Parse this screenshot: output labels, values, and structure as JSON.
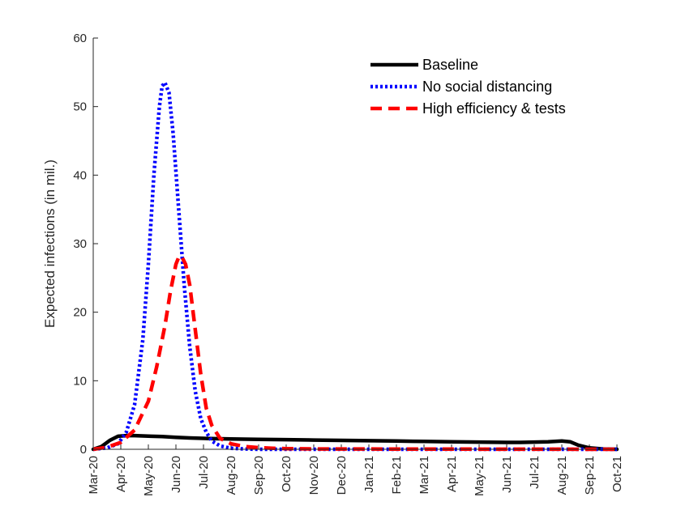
{
  "chart_data": {
    "type": "line",
    "title": "",
    "xlabel": "",
    "ylabel": "Expected infections (in mil.)",
    "ylim": [
      0,
      60
    ],
    "yticks": [
      0,
      10,
      20,
      30,
      40,
      50,
      60
    ],
    "xlim": [
      0,
      19
    ],
    "categories": [
      "Mar-20",
      "Apr-20",
      "May-20",
      "Jun-20",
      "Jul-20",
      "Aug-20",
      "Sep-20",
      "Oct-20",
      "Nov-20",
      "Dec-20",
      "Jan-21",
      "Feb-21",
      "Mar-21",
      "Apr-21",
      "May-21",
      "Jun-21",
      "Jul-21",
      "Aug-21",
      "Sep-21",
      "Oct-21"
    ],
    "legend_position": "top-right",
    "series": [
      {
        "name": "Baseline",
        "color": "#000000",
        "style": "solid",
        "x": [
          0,
          0.3,
          0.6,
          0.9,
          1.2,
          1.5,
          1.8,
          2.1,
          2.5,
          3.0,
          3.5,
          4.0,
          5.0,
          6.0,
          7.0,
          8.0,
          9.0,
          10.0,
          11.0,
          12.0,
          13.0,
          14.0,
          15.0,
          15.5,
          16.0,
          16.5,
          17.0,
          17.3,
          17.6,
          18.0,
          18.5,
          19.0
        ],
        "y": [
          0,
          0.4,
          1.3,
          1.9,
          2.0,
          2.0,
          1.95,
          1.9,
          1.85,
          1.75,
          1.65,
          1.6,
          1.5,
          1.45,
          1.4,
          1.35,
          1.3,
          1.25,
          1.2,
          1.15,
          1.1,
          1.05,
          1.0,
          1.0,
          1.05,
          1.1,
          1.2,
          1.1,
          0.6,
          0.2,
          0.05,
          0.0
        ]
      },
      {
        "name": "No social distancing",
        "color": "#0000ff",
        "style": "dotted",
        "x": [
          0,
          0.5,
          0.9,
          1.2,
          1.5,
          1.8,
          2.0,
          2.2,
          2.4,
          2.5,
          2.6,
          2.75,
          2.9,
          3.1,
          3.3,
          3.5,
          3.7,
          3.9,
          4.1,
          4.3,
          4.6,
          5.0,
          5.5,
          6.0,
          19.0
        ],
        "y": [
          0,
          0.2,
          0.8,
          2.5,
          6.5,
          16.0,
          27.0,
          40.0,
          50.0,
          53.0,
          53.5,
          52.0,
          46.0,
          35.0,
          24.0,
          15.0,
          8.5,
          4.5,
          2.5,
          1.2,
          0.5,
          0.15,
          0.05,
          0.0,
          0.0
        ]
      },
      {
        "name": "High efficiency & tests",
        "color": "#ff0000",
        "style": "dashed",
        "x": [
          0,
          0.5,
          1.0,
          1.5,
          2.0,
          2.3,
          2.6,
          2.8,
          3.0,
          3.1,
          3.2,
          3.35,
          3.5,
          3.7,
          3.9,
          4.1,
          4.3,
          4.6,
          5.0,
          5.5,
          6.0,
          6.5,
          7.0,
          8.0,
          19.0
        ],
        "y": [
          0,
          0.3,
          1.0,
          2.8,
          7.0,
          12.0,
          18.0,
          23.0,
          27.0,
          28.0,
          28.2,
          27.0,
          24.0,
          17.5,
          11.0,
          6.0,
          3.5,
          1.6,
          0.8,
          0.4,
          0.25,
          0.15,
          0.1,
          0.05,
          0.0
        ]
      }
    ]
  }
}
